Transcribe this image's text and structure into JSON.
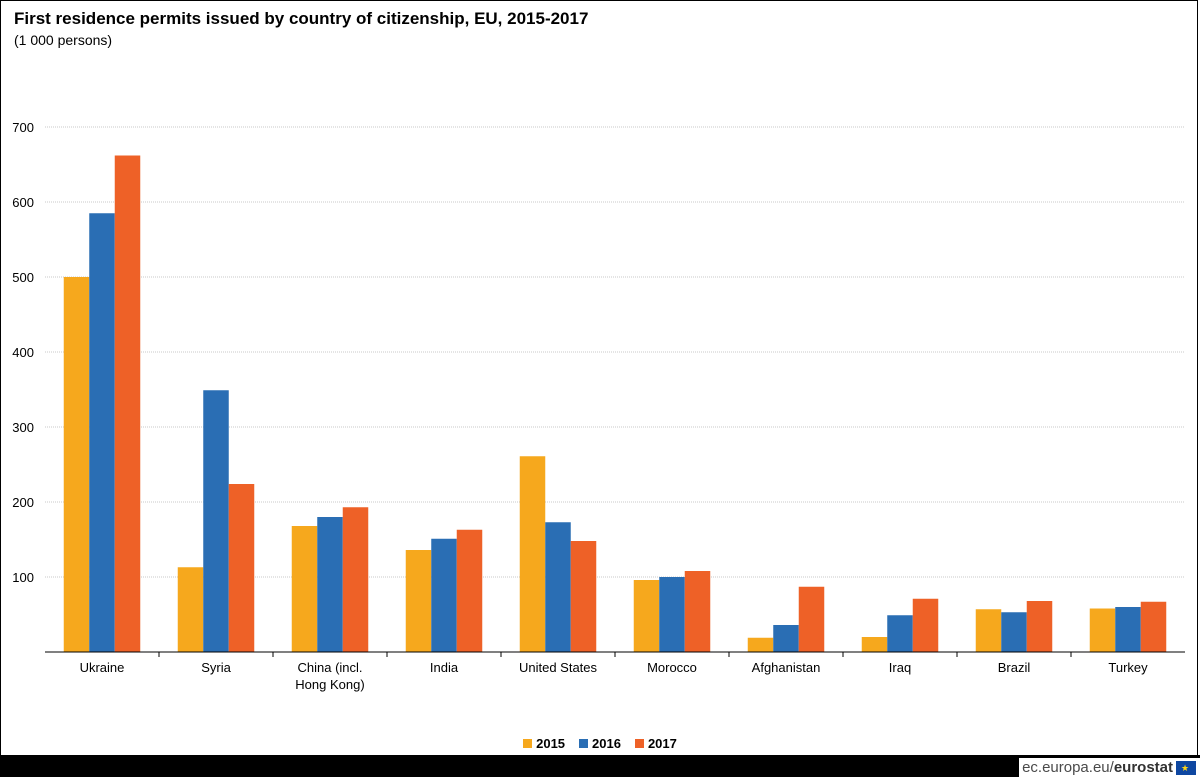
{
  "title": "First residence permits issued by country of citizenship, EU, 2015-2017",
  "subtitle": "(1 000 persons)",
  "footer": {
    "site": "ec.europa.eu/",
    "brand": "eurostat",
    "flag_icon": "eu-flag-icon"
  },
  "colors": {
    "2015": "#f6a81d",
    "2016": "#2a6eb4",
    "2017": "#ee6127"
  },
  "chart_data": {
    "type": "bar",
    "categories": [
      "Ukraine",
      "Syria",
      "China (incl. Hong Kong)",
      "India",
      "United States",
      "Morocco",
      "Afghanistan",
      "Iraq",
      "Brazil",
      "Turkey"
    ],
    "category_lines": [
      [
        "Ukraine"
      ],
      [
        "Syria"
      ],
      [
        "China (incl.",
        "Hong Kong)"
      ],
      [
        "India"
      ],
      [
        "United States"
      ],
      [
        "Morocco"
      ],
      [
        "Afghanistan"
      ],
      [
        "Iraq"
      ],
      [
        "Brazil"
      ],
      [
        "Turkey"
      ]
    ],
    "series": [
      {
        "name": "2015",
        "values": [
          500,
          113,
          168,
          136,
          261,
          96,
          19,
          20,
          57,
          58
        ]
      },
      {
        "name": "2016",
        "values": [
          585,
          349,
          180,
          151,
          173,
          100,
          36,
          49,
          53,
          60
        ]
      },
      {
        "name": "2017",
        "values": [
          662,
          224,
          193,
          163,
          148,
          108,
          87,
          71,
          68,
          67
        ]
      }
    ],
    "yticks": [
      100,
      200,
      300,
      400,
      500,
      600,
      700
    ],
    "ylim": [
      0,
      700
    ],
    "grid": true,
    "legend_position": "bottom-center"
  }
}
